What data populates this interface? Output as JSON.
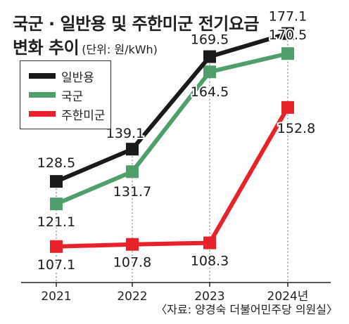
{
  "title_line1": "국군 · 일반용 및 주한미군 전기요금",
  "title_line2": "변화 추이",
  "unit": "(단위: 원/kWh)",
  "source": "〈자료: 양경숙 더불어민주당 의원실〉",
  "chart_data": {
    "type": "line",
    "categories": [
      "2021",
      "2022",
      "2023",
      "2024년"
    ],
    "series": [
      {
        "name": "일반용",
        "color": "#1a1a1a",
        "values": [
          128.5,
          139.1,
          169.5,
          177.1
        ],
        "labels": [
          "128.5",
          "139.1",
          "169.5",
          "177.1"
        ]
      },
      {
        "name": "국군",
        "color": "#4f9e6b",
        "values": [
          121.1,
          131.7,
          164.5,
          170.5
        ],
        "labels": [
          "121.1",
          "131.7",
          "164.5",
          "170.5"
        ]
      },
      {
        "name": "주한미군",
        "color": "#e8222a",
        "values": [
          107.1,
          107.8,
          108.3,
          152.8
        ],
        "labels": [
          "107.1",
          "107.8",
          "108.3",
          "152.8"
        ]
      }
    ],
    "legend": "top-left",
    "grid": false
  }
}
